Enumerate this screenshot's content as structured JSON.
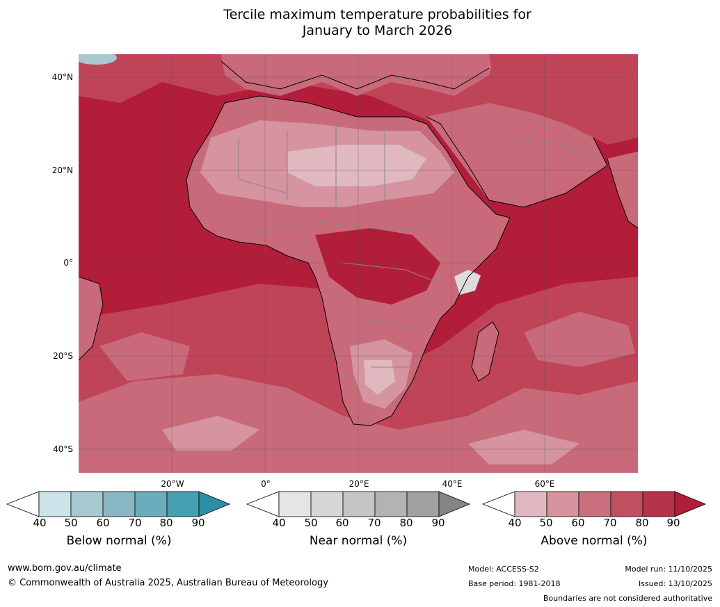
{
  "title": {
    "line1": "Tercile maximum temperature probabilities for",
    "line2": "January to March 2026"
  },
  "axes": {
    "latitudes": [
      "40°N",
      "20°N",
      "0°",
      "20°S",
      "40°S"
    ],
    "longitudes": [
      "20°W",
      "0°",
      "20°E",
      "40°E",
      "60°E"
    ]
  },
  "legends": [
    {
      "name": "below",
      "title": "Below normal (%)",
      "ticks": [
        "40",
        "50",
        "60",
        "70",
        "80",
        "90"
      ],
      "colors": [
        "#ffffff",
        "#cbe3e9",
        "#a7c8d0",
        "#88b7c3",
        "#6aaebd",
        "#46a0b3",
        "#2c8fa6"
      ]
    },
    {
      "name": "near",
      "title": "Near normal (%)",
      "ticks": [
        "40",
        "50",
        "60",
        "70",
        "80",
        "90"
      ],
      "colors": [
        "#ffffff",
        "#e5e5e5",
        "#d6d6d6",
        "#c5c5c5",
        "#b3b3b3",
        "#a0a0a0",
        "#858585"
      ]
    },
    {
      "name": "above",
      "title": "Above normal (%)",
      "ticks": [
        "40",
        "50",
        "60",
        "70",
        "80",
        "90"
      ],
      "colors": [
        "#ffffff",
        "#e0b8bf",
        "#d5939e",
        "#c96f7e",
        "#bf5060",
        "#b43348",
        "#b21d3a"
      ]
    }
  ],
  "footer": {
    "website": "www.bom.gov.au/climate",
    "copyright": "© Commonwealth of Australia 2025, Australian Bureau of Meteorology",
    "model": "Model: ACCESS-S2",
    "base_period": "Base period: 1981-2018",
    "model_run": "Model run: 11/10/2025",
    "issued": "Issued: 13/10/2025",
    "disclaimer": "Boundaries are not considered authoritative"
  },
  "colors": {
    "ocean_deep": "#b21d3a",
    "band_80": "#bf4458",
    "band_70": "#c86a7a",
    "band_60": "#d5949f",
    "band_50": "#e0b8bf",
    "near_light": "#dcdcdc",
    "below_hint": "#6aaebd"
  }
}
